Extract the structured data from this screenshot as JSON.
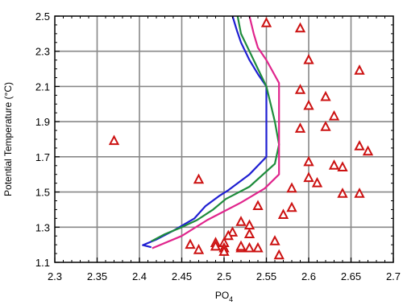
{
  "chart_data": {
    "type": "scatter",
    "xlabel": "PO",
    "xlabel_subscript": "4",
    "ylabel": "Potential Temperature (°C)",
    "xlim": [
      2.3,
      2.7
    ],
    "ylim": [
      1.1,
      2.5
    ],
    "grid": true,
    "x_ticks": [
      2.3,
      2.35,
      2.4,
      2.45,
      2.5,
      2.55,
      2.6,
      2.65,
      2.7
    ],
    "x_tick_labels": [
      "2.3",
      "2.35",
      "2.4",
      "2.45",
      "2.5",
      "2.55",
      "2.6",
      "2.65",
      "2.7"
    ],
    "y_ticks": [
      1.1,
      1.3,
      1.5,
      1.7,
      1.9,
      2.1,
      2.3,
      2.5
    ],
    "y_tick_labels": [
      "1.1",
      "1.3",
      "1.5",
      "1.7",
      "1.9",
      "2.1",
      "2.3",
      "2.5"
    ],
    "colors": {
      "blue": "#1f1fd2",
      "green": "#1e8c3c",
      "magenta": "#e0248c",
      "marker": "#cc1111"
    },
    "lines": [
      {
        "color": "blue",
        "points": [
          [
            2.414,
            1.186
          ],
          [
            2.404,
            1.198
          ],
          [
            2.42,
            1.23
          ],
          [
            2.44,
            1.28
          ],
          [
            2.465,
            1.35
          ],
          [
            2.478,
            1.42
          ],
          [
            2.495,
            1.48
          ],
          [
            2.505,
            1.51
          ],
          [
            2.53,
            1.6
          ],
          [
            2.55,
            1.7
          ],
          [
            2.55,
            1.78
          ],
          [
            2.55,
            1.9
          ],
          [
            2.55,
            2.0
          ],
          [
            2.55,
            2.1
          ],
          [
            2.54,
            2.17
          ],
          [
            2.53,
            2.25
          ],
          [
            2.52,
            2.35
          ],
          [
            2.515,
            2.42
          ],
          [
            2.51,
            2.5
          ]
        ]
      },
      {
        "color": "green",
        "points": [
          [
            2.414,
            1.22
          ],
          [
            2.43,
            1.26
          ],
          [
            2.45,
            1.3
          ],
          [
            2.468,
            1.34
          ],
          [
            2.487,
            1.4
          ],
          [
            2.502,
            1.46
          ],
          [
            2.53,
            1.53
          ],
          [
            2.56,
            1.66
          ],
          [
            2.565,
            1.77
          ],
          [
            2.56,
            1.9
          ],
          [
            2.555,
            2.0
          ],
          [
            2.55,
            2.1
          ],
          [
            2.54,
            2.2
          ],
          [
            2.53,
            2.3
          ],
          [
            2.52,
            2.4
          ],
          [
            2.516,
            2.5
          ]
        ]
      },
      {
        "color": "magenta",
        "points": [
          [
            2.415,
            1.18
          ],
          [
            2.45,
            1.25
          ],
          [
            2.48,
            1.34
          ],
          [
            2.52,
            1.44
          ],
          [
            2.548,
            1.52
          ],
          [
            2.565,
            1.6
          ],
          [
            2.565,
            1.7
          ],
          [
            2.565,
            1.8
          ],
          [
            2.565,
            1.9
          ],
          [
            2.565,
            2.0
          ],
          [
            2.565,
            2.12
          ],
          [
            2.55,
            2.25
          ],
          [
            2.54,
            2.32
          ],
          [
            2.535,
            2.4
          ],
          [
            2.53,
            2.5
          ]
        ]
      }
    ],
    "series": [
      {
        "marker": "triangle",
        "color": "marker",
        "points": [
          [
            2.37,
            1.79
          ],
          [
            2.47,
            1.57
          ],
          [
            2.55,
            2.46
          ],
          [
            2.59,
            2.43
          ],
          [
            2.6,
            2.25
          ],
          [
            2.66,
            2.19
          ],
          [
            2.59,
            2.08
          ],
          [
            2.62,
            2.04
          ],
          [
            2.6,
            1.99
          ],
          [
            2.63,
            1.93
          ],
          [
            2.62,
            1.87
          ],
          [
            2.59,
            1.86
          ],
          [
            2.66,
            1.76
          ],
          [
            2.67,
            1.73
          ],
          [
            2.6,
            1.67
          ],
          [
            2.63,
            1.65
          ],
          [
            2.64,
            1.64
          ],
          [
            2.6,
            1.58
          ],
          [
            2.61,
            1.55
          ],
          [
            2.58,
            1.52
          ],
          [
            2.64,
            1.49
          ],
          [
            2.66,
            1.49
          ],
          [
            2.54,
            1.42
          ],
          [
            2.58,
            1.41
          ],
          [
            2.57,
            1.37
          ],
          [
            2.52,
            1.33
          ],
          [
            2.53,
            1.31
          ],
          [
            2.51,
            1.27
          ],
          [
            2.53,
            1.26
          ],
          [
            2.505,
            1.25
          ],
          [
            2.56,
            1.22
          ],
          [
            2.49,
            1.21
          ],
          [
            2.5,
            1.21
          ],
          [
            2.46,
            1.2
          ],
          [
            2.49,
            1.19
          ],
          [
            2.5,
            1.18
          ],
          [
            2.52,
            1.18
          ],
          [
            2.52,
            1.19
          ],
          [
            2.53,
            1.18
          ],
          [
            2.54,
            1.18
          ],
          [
            2.47,
            1.17
          ],
          [
            2.5,
            1.16
          ],
          [
            2.565,
            1.14
          ]
        ]
      }
    ]
  }
}
